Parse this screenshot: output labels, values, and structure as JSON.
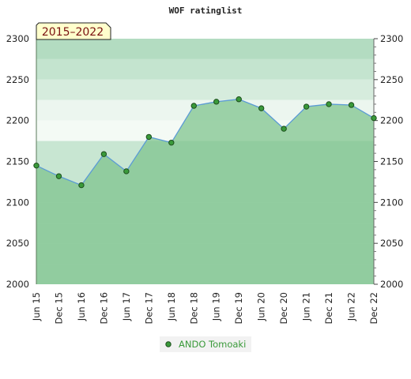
{
  "chart_data": {
    "type": "line",
    "title": "WOF ratinglist",
    "badge": "2015–2022",
    "categories": [
      "Jun 15",
      "Dec 15",
      "Jun 16",
      "Dec 16",
      "Jun 17",
      "Dec 17",
      "Jun 18",
      "Dec 18",
      "Jun 19",
      "Dec 19",
      "Jun 20",
      "Dec 20",
      "Jun 21",
      "Dec 21",
      "Jun 22",
      "Dec 22"
    ],
    "series": [
      {
        "name": "ANDO Tomoaki",
        "values": [
          2145,
          2132,
          2121,
          2159,
          2138,
          2180,
          2173,
          2218,
          2223,
          2226,
          2215,
          2190,
          2217,
          2220,
          2219,
          2203
        ]
      }
    ],
    "ylim": [
      2000,
      2300
    ],
    "y_ticks": [
      2000,
      2050,
      2100,
      2150,
      2200,
      2250,
      2300
    ],
    "y_axis_both_sides": true,
    "legend_position": "bottom",
    "colors": {
      "line": "#5b9bd5",
      "marker": "#3a9a3a",
      "fill": "#7cc28a",
      "badge_bg": "#ffffcc"
    }
  }
}
